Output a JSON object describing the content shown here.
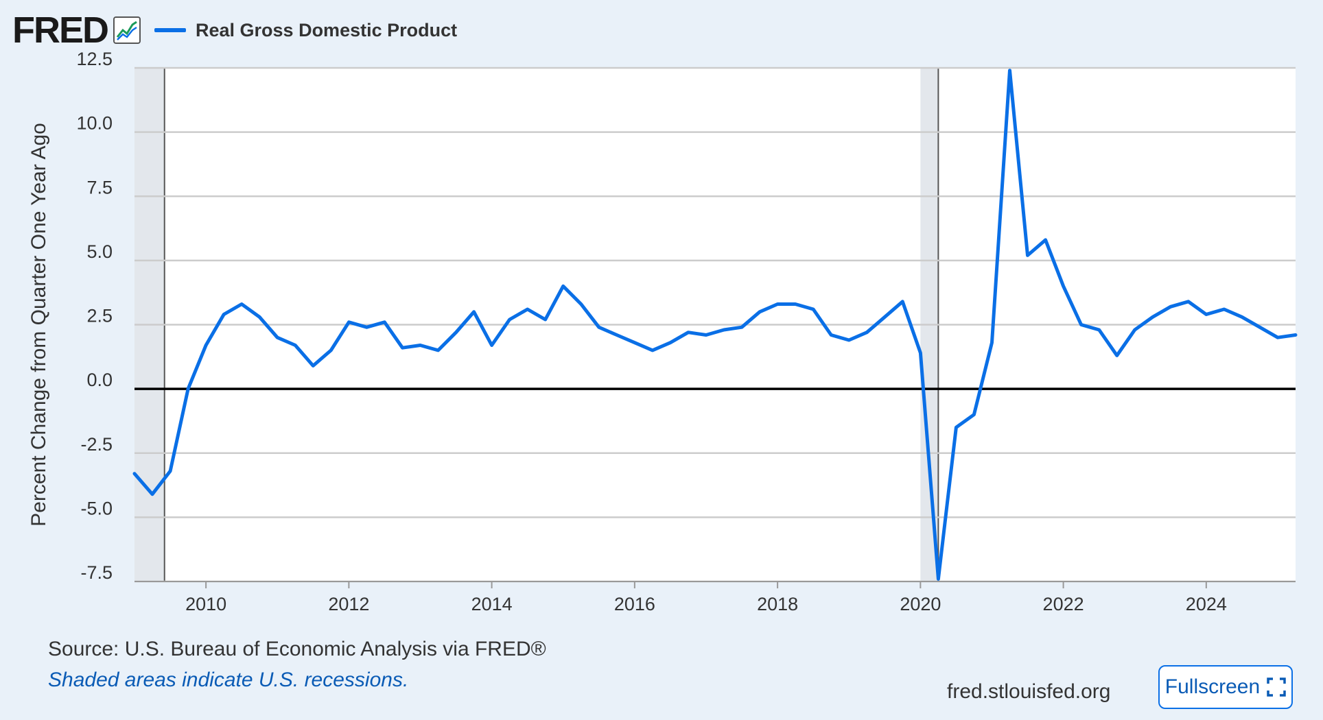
{
  "header": {
    "logo_text": "FRED",
    "legend_label": "Real Gross Domestic Product"
  },
  "footer": {
    "source": "Source: U.S. Bureau of Economic Analysis via FRED®",
    "shaded_note": "Shaded areas indicate U.S. recessions.",
    "site": "fred.stlouisfed.org",
    "fullscreen_label": "Fullscreen"
  },
  "colors": {
    "series": "#0a6fe6",
    "background": "#e9f1f9",
    "recession": "#e3e7ec"
  },
  "icons": {
    "logo_chart": "line-chart-icon",
    "fullscreen": "expand-corners-icon"
  },
  "chart_data": {
    "type": "line",
    "title": "",
    "xlabel": "",
    "ylabel": "Percent Change from Quarter One Year Ago",
    "xlim": [
      2009.0,
      2025.25
    ],
    "ylim": [
      -7.5,
      12.5
    ],
    "yticks": [
      12.5,
      10.0,
      7.5,
      5.0,
      2.5,
      0.0,
      -2.5,
      -5.0,
      -7.5
    ],
    "ytick_labels": [
      "12.5",
      "10.0",
      "7.5",
      "5.0",
      "2.5",
      "0.0",
      "-2.5",
      "-5.0",
      "-7.5"
    ],
    "xticks": [
      2010,
      2012,
      2014,
      2016,
      2018,
      2020,
      2022,
      2024
    ],
    "xtick_labels": [
      "2010",
      "2012",
      "2014",
      "2016",
      "2018",
      "2020",
      "2022",
      "2024"
    ],
    "grid": true,
    "legend": "top-left",
    "recessions": [
      [
        2009.0,
        2009.42
      ],
      [
        2020.0,
        2020.25
      ]
    ],
    "series": [
      {
        "name": "Real Gross Domestic Product",
        "x": [
          2009.0,
          2009.25,
          2009.5,
          2009.75,
          2010.0,
          2010.25,
          2010.5,
          2010.75,
          2011.0,
          2011.25,
          2011.5,
          2011.75,
          2012.0,
          2012.25,
          2012.5,
          2012.75,
          2013.0,
          2013.25,
          2013.5,
          2013.75,
          2014.0,
          2014.25,
          2014.5,
          2014.75,
          2015.0,
          2015.25,
          2015.5,
          2015.75,
          2016.0,
          2016.25,
          2016.5,
          2016.75,
          2017.0,
          2017.25,
          2017.5,
          2017.75,
          2018.0,
          2018.25,
          2018.5,
          2018.75,
          2019.0,
          2019.25,
          2019.5,
          2019.75,
          2020.0,
          2020.25,
          2020.5,
          2020.75,
          2021.0,
          2021.25,
          2021.5,
          2021.75,
          2022.0,
          2022.25,
          2022.5,
          2022.75,
          2023.0,
          2023.25,
          2023.5,
          2023.75,
          2024.0,
          2024.25,
          2024.5,
          2024.75,
          2025.0,
          2025.25
        ],
        "values": [
          -3.3,
          -4.1,
          -3.2,
          0.0,
          1.7,
          2.9,
          3.3,
          2.8,
          2.0,
          1.7,
          0.9,
          1.5,
          2.6,
          2.4,
          2.6,
          1.6,
          1.7,
          1.5,
          2.2,
          3.0,
          1.7,
          2.7,
          3.1,
          2.7,
          4.0,
          3.3,
          2.4,
          2.1,
          1.8,
          1.5,
          1.8,
          2.2,
          2.1,
          2.3,
          2.4,
          3.0,
          3.3,
          3.3,
          3.1,
          2.1,
          1.9,
          2.2,
          2.8,
          3.4,
          1.4,
          -7.4,
          -1.5,
          -1.0,
          1.8,
          12.4,
          5.2,
          5.8,
          4.0,
          2.5,
          2.3,
          1.3,
          2.3,
          2.8,
          3.2,
          3.4,
          2.9,
          3.1,
          2.8,
          2.4,
          2.0,
          2.1
        ]
      }
    ]
  }
}
